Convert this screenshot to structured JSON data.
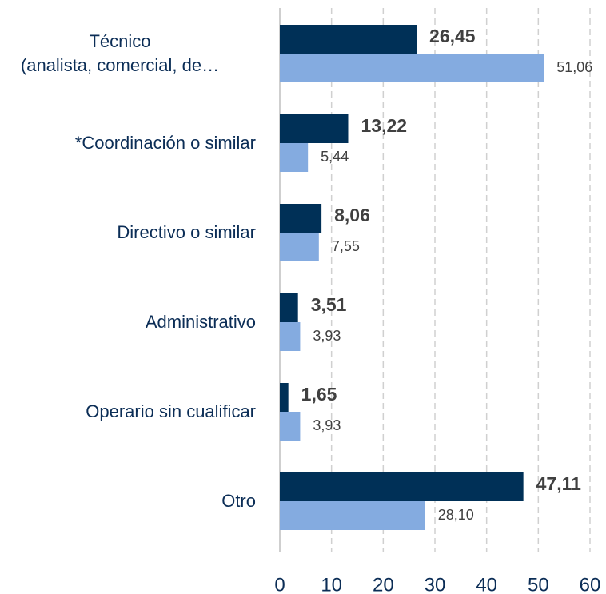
{
  "chart_data": {
    "type": "hbar",
    "categories": [
      "Técnico\n(analista, comercial, de…",
      "*Coordinación o similar",
      "Directivo o similar",
      "Administrativo",
      "Operario sin cualificar",
      "Otro"
    ],
    "series": [
      {
        "color": "#003057",
        "values": [
          26.45,
          13.22,
          8.06,
          3.51,
          1.65,
          47.11
        ],
        "value_labels": [
          "26,45",
          "13,22",
          "8,06",
          "3,51",
          "1,65",
          "47,11"
        ]
      },
      {
        "color": "#84abe0",
        "values": [
          51.06,
          5.44,
          7.55,
          3.93,
          3.93,
          28.1
        ],
        "value_labels": [
          "51,06",
          "5,44",
          "7,55",
          "3,93",
          "3,93",
          "28,10"
        ]
      }
    ],
    "xlim": [
      0,
      60
    ],
    "xticks": [
      0,
      10,
      20,
      30,
      40,
      50,
      60
    ],
    "grid": true
  }
}
